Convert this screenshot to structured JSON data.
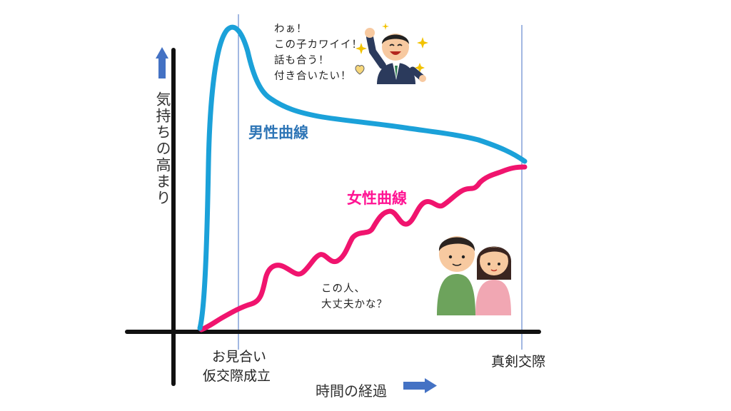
{
  "colors": {
    "male_curve": "#1BA1D9",
    "female_curve": "#F0146E",
    "male_label": "#2E75B6",
    "female_label": "#FF1493",
    "axis": "#111111",
    "guide_line": "#4472C4",
    "arrow": "#4472C4"
  },
  "axes": {
    "y_label": "気持ちの高まり",
    "x_label": "時間の経過"
  },
  "markers": {
    "left_line1": "お見合い",
    "left_line2": "仮交際成立",
    "right": "真剣交際"
  },
  "curves": {
    "male_name": "男性曲線",
    "female_name": "女性曲線"
  },
  "speech": {
    "male_lines": [
      "わぁ！",
      "この子カワイイ！",
      "話も合う！",
      "付き合いたい！"
    ],
    "female_lines": [
      "この人、",
      "大丈夫かな？"
    ]
  },
  "icons": {
    "male_character": "excited-man-icon",
    "couple": "couple-icon",
    "heart": "heart-icon",
    "sparkles": "sparkle-icon"
  }
}
